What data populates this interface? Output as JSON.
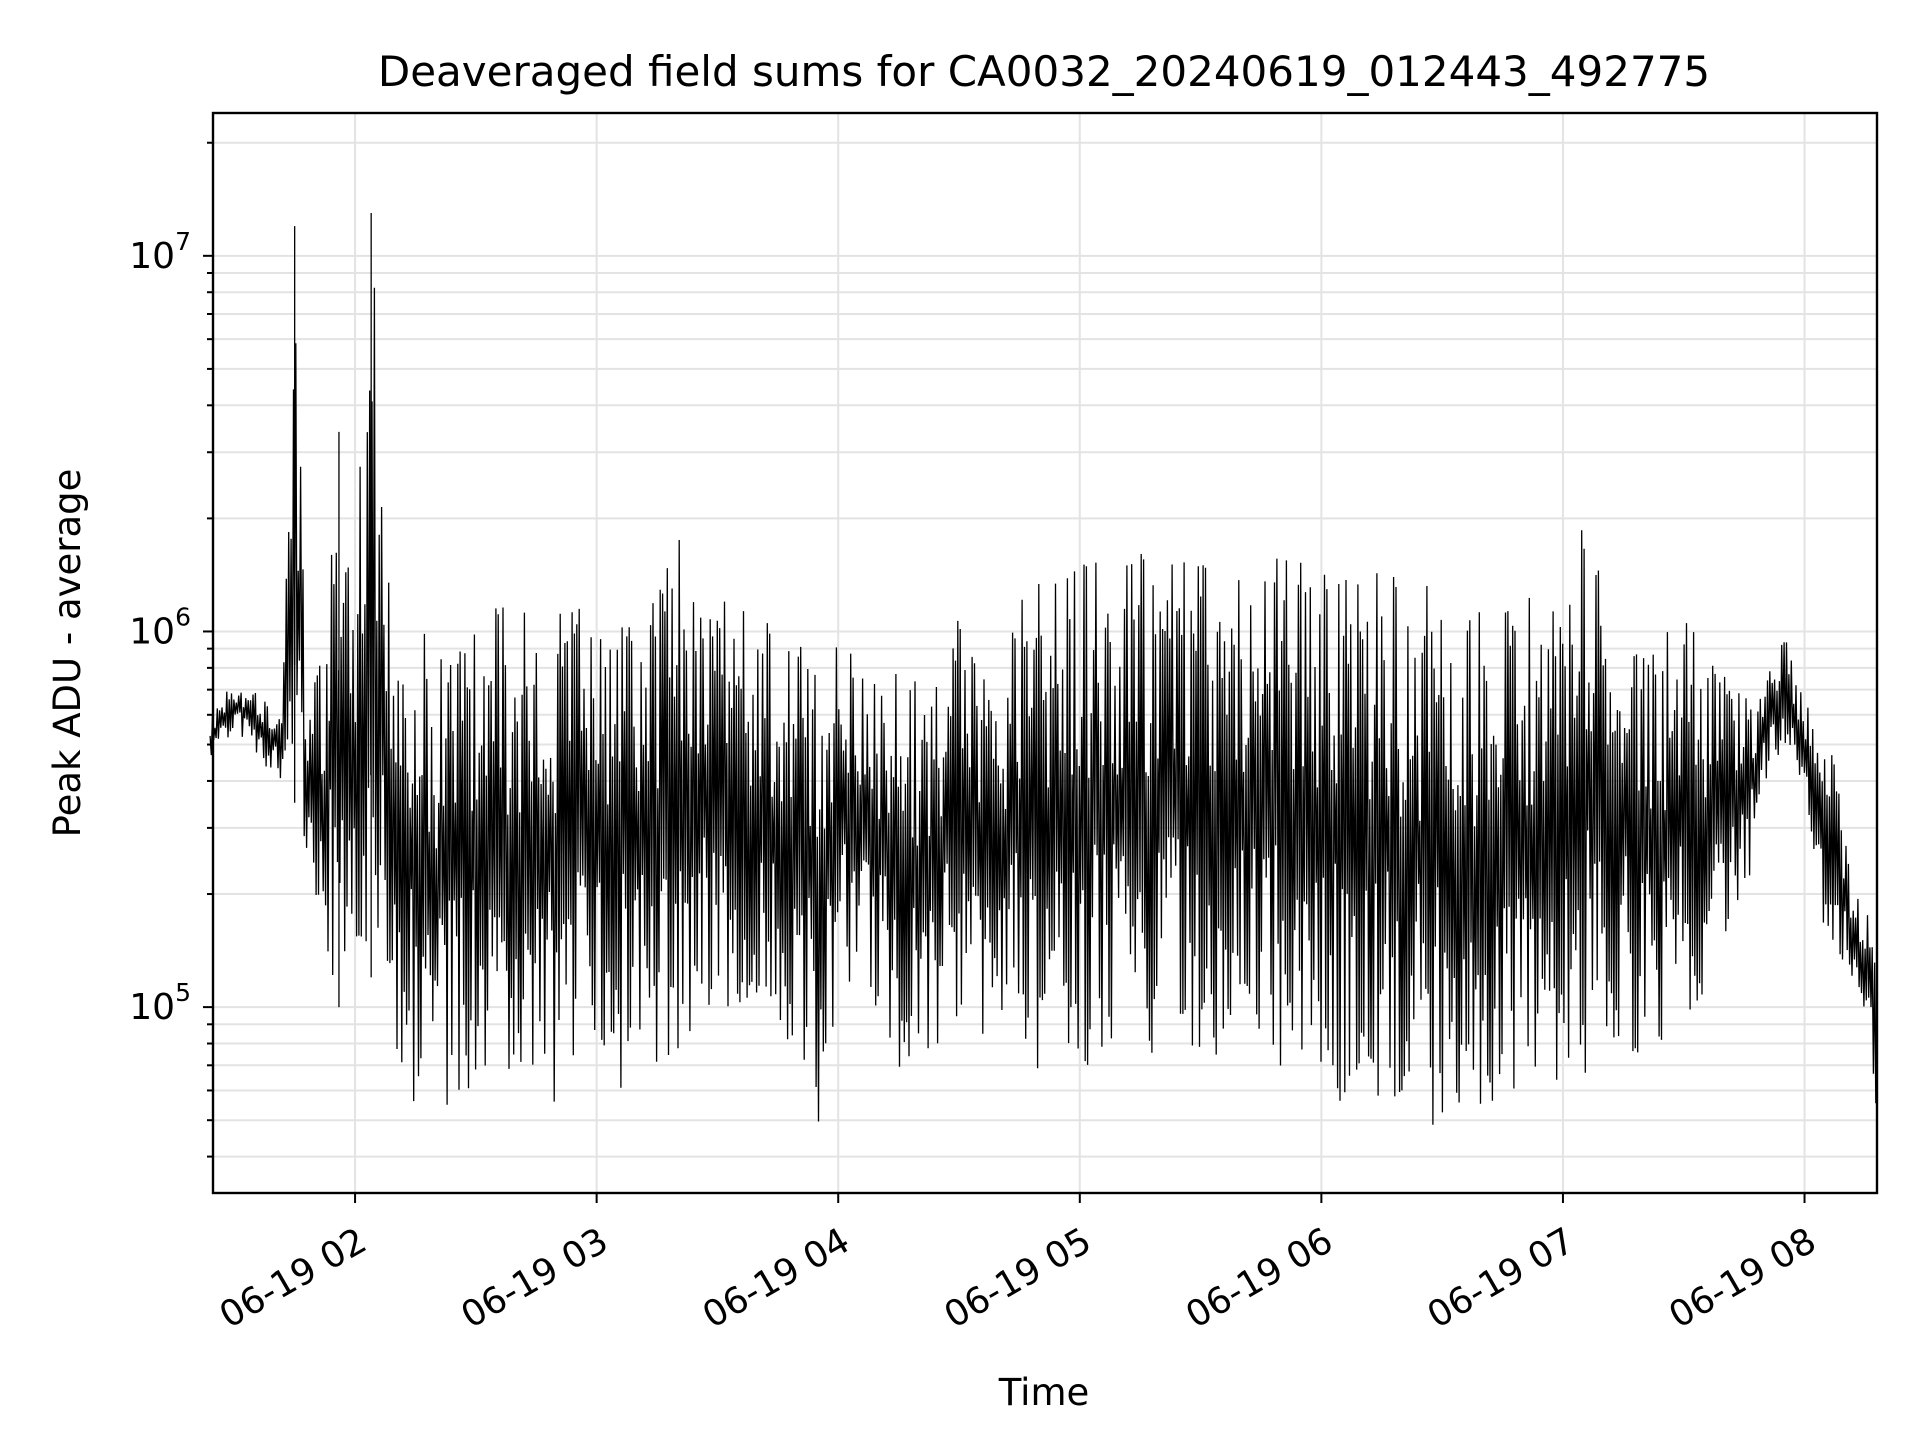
{
  "chart_data": {
    "type": "line",
    "title": "Deaveraged field sums for CA0032_20240619_012443_492775",
    "xlabel": "Time",
    "ylabel": "Peak ADU - average",
    "xscale": "time",
    "yscale": "log",
    "xlim": [
      "2024-06-19 01:24:43",
      "2024-06-19 08:18:00"
    ],
    "ylim": [
      32000,
      24000000
    ],
    "grid": true,
    "grid_minor": true,
    "x_ticks": [
      "06-19 02",
      "06-19 03",
      "06-19 04",
      "06-19 05",
      "06-19 06",
      "06-19 07",
      "06-19 08"
    ],
    "y_ticks": [
      {
        "base": "10",
        "exp": "5",
        "value": 100000
      },
      {
        "base": "10",
        "exp": "6",
        "value": 1000000
      },
      {
        "base": "10",
        "exp": "7",
        "value": 10000000
      }
    ],
    "line_color": "#000000",
    "series": [
      {
        "x": [
          "01:24",
          "01:30",
          "01:36",
          "01:42",
          "01:45",
          "01:48",
          "01:52",
          "01:56",
          "02:00",
          "02:04",
          "02:08",
          "02:12",
          "02:16",
          "02:20",
          "02:24",
          "02:28",
          "02:32",
          "02:36",
          "02:40",
          "02:45",
          "02:50",
          "02:55",
          "03:00",
          "03:05",
          "03:10",
          "03:15",
          "03:20",
          "03:25",
          "03:30",
          "03:35",
          "03:40",
          "03:45",
          "03:50",
          "03:55",
          "04:00",
          "04:05",
          "04:10",
          "04:15",
          "04:20",
          "04:25",
          "04:30",
          "04:35",
          "04:40",
          "04:45",
          "04:50",
          "04:55",
          "05:00",
          "05:05",
          "05:10",
          "05:15",
          "05:20",
          "05:25",
          "05:30",
          "05:35",
          "05:40",
          "05:45",
          "05:50",
          "05:55",
          "06:00",
          "06:05",
          "06:10",
          "06:15",
          "06:20",
          "06:25",
          "06:30",
          "06:35",
          "06:40",
          "06:45",
          "06:50",
          "06:55",
          "07:00",
          "07:05",
          "07:10",
          "07:15",
          "07:20",
          "07:25",
          "07:30",
          "07:35",
          "07:40",
          "07:45",
          "07:50",
          "07:55",
          "08:00",
          "08:04",
          "08:08",
          "08:12",
          "08:16",
          "08:18"
        ],
        "y_high": [
          600000,
          750000,
          700000,
          650000,
          12000000,
          600000,
          900000,
          3400000,
          1500000,
          13000000,
          1600000,
          1200000,
          1100000,
          1000000,
          1100000,
          1200000,
          1100000,
          1200000,
          1100000,
          1200000,
          1150000,
          1200000,
          1250000,
          1300000,
          1300000,
          1400000,
          2000000,
          1300000,
          1250000,
          1200000,
          1100000,
          1050000,
          1000000,
          1000000,
          950000,
          900000,
          850000,
          800000,
          750000,
          800000,
          1100000,
          800000,
          700000,
          1600000,
          1600000,
          1600000,
          1600000,
          1600000,
          1600000,
          1650000,
          1650000,
          1650000,
          1650000,
          1650000,
          1650000,
          1650000,
          1650000,
          1650000,
          1650000,
          1600000,
          1600000,
          1550000,
          1500000,
          1400000,
          1300000,
          1250000,
          1200000,
          1150000,
          1300000,
          1200000,
          1100000,
          2200000,
          1300000,
          1250000,
          1100000,
          1000000,
          1200000,
          900000,
          850000,
          750000,
          700000,
          1050000,
          650000,
          600000,
          450000,
          200000,
          190000,
          160000
        ],
        "y_low": [
          450000,
          550000,
          450000,
          400000,
          350000,
          250000,
          150000,
          100000,
          150000,
          120000,
          90000,
          60000,
          48000,
          50000,
          55000,
          60000,
          58000,
          70000,
          65000,
          60000,
          55000,
          60000,
          50000,
          55000,
          60000,
          70000,
          65000,
          90000,
          100000,
          95000,
          85000,
          70000,
          80000,
          40000,
          100000,
          110000,
          90000,
          65000,
          70000,
          80000,
          90000,
          80000,
          75000,
          70000,
          65000,
          65000,
          70000,
          70000,
          75000,
          75000,
          72000,
          70000,
          70000,
          70000,
          68000,
          65000,
          62000,
          60000,
          50000,
          55000,
          52000,
          50000,
          48000,
          50000,
          45000,
          48000,
          55000,
          55000,
          55000,
          58000,
          60000,
          65000,
          68000,
          70000,
          75000,
          80000,
          90000,
          100000,
          120000,
          180000,
          400000,
          450000,
          350000,
          150000,
          140000,
          120000,
          80000,
          50000
        ]
      }
    ]
  }
}
